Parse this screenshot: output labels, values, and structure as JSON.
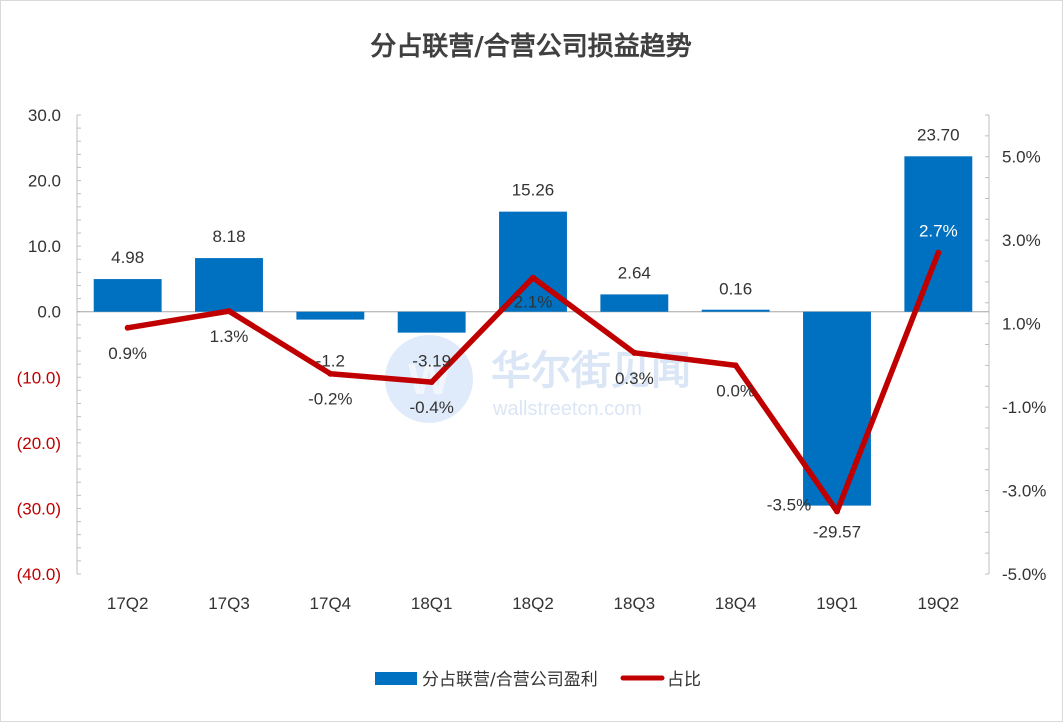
{
  "watermark": {
    "name_cn": "华尔街见闻",
    "site": "wallstreetcn.com"
  },
  "chart_data": {
    "type": "bar",
    "title": "分占联营/合营公司损益趋势",
    "categories": [
      "17Q2",
      "17Q3",
      "17Q4",
      "18Q1",
      "18Q2",
      "18Q3",
      "18Q4",
      "19Q1",
      "19Q2"
    ],
    "series": [
      {
        "name": "分占联营/合营公司盈利",
        "type": "bar",
        "axis": "left",
        "color": "#0070c0",
        "values": [
          4.98,
          8.18,
          -1.2,
          -3.19,
          15.26,
          2.64,
          0.16,
          -29.57,
          23.7
        ],
        "labels": [
          "4.98",
          "8.18",
          "-1.2",
          "-3.19",
          "15.26",
          "2.64",
          "0.16",
          "-29.57",
          "23.70"
        ]
      },
      {
        "name": "占比",
        "type": "line",
        "axis": "right",
        "color": "#c00000",
        "values": [
          0.9,
          1.3,
          -0.2,
          -0.4,
          2.1,
          0.3,
          0.0,
          -3.5,
          2.7
        ],
        "labels": [
          "0.9%",
          "1.3%",
          "-0.2%",
          "-0.4%",
          "2.1%",
          "0.3%",
          "0.0%",
          "-3.5%",
          "2.7%"
        ]
      }
    ],
    "y_left": {
      "ylim": [
        -40,
        30
      ],
      "ticks": [
        30,
        20,
        10,
        0,
        -10,
        -20,
        -30,
        -40
      ],
      "tick_labels": [
        "30.0",
        "20.0",
        "10.0",
        "0.0",
        "(10.0)",
        "(20.0)",
        "(30.0)",
        "(40.0)"
      ],
      "negative_color": "#c00000"
    },
    "y_right": {
      "ylim": [
        -5,
        6
      ],
      "ticks": [
        5,
        3,
        1,
        -1,
        -3,
        -5
      ],
      "tick_labels": [
        "5.0%",
        "3.0%",
        "1.0%",
        "-1.0%",
        "-3.0%",
        "-5.0%"
      ]
    },
    "grid": false,
    "legend": "bottom"
  }
}
